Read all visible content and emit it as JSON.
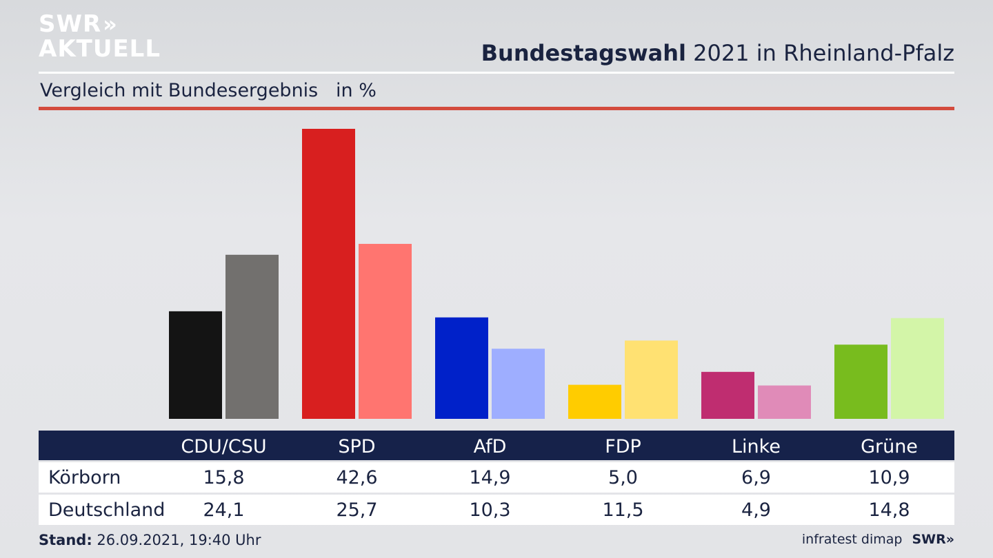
{
  "header": {
    "logo_line1": "SWR",
    "logo_chevrons": "»",
    "logo_line2": "AKTUELL",
    "title_bold": "Bundestagswahl",
    "title_rest": " 2021 in Rheinland-Pfalz",
    "subtitle": "Vergleich mit Bundesergebnis   in %"
  },
  "chart_data": {
    "type": "bar",
    "categories": [
      "CDU/CSU",
      "SPD",
      "AfD",
      "FDP",
      "Linke",
      "Grüne"
    ],
    "series": [
      {
        "name": "Körborn",
        "values": [
          15.8,
          42.6,
          14.9,
          5.0,
          6.9,
          10.9
        ]
      },
      {
        "name": "Deutschland",
        "values": [
          24.1,
          25.7,
          10.3,
          11.5,
          4.9,
          14.8
        ]
      }
    ],
    "value_labels": [
      [
        "15,8",
        "42,6",
        "14,9",
        "5,0",
        "6,9",
        "10,9"
      ],
      [
        "24,1",
        "25,7",
        "10,3",
        "11,5",
        "4,9",
        "14,8"
      ]
    ],
    "colors_primary": [
      "#141414",
      "#d81f1f",
      "#0021c9",
      "#ffcc00",
      "#bf2d70",
      "#78bc1e"
    ],
    "colors_secondary": [
      "#72706e",
      "#ff7570",
      "#9eaeff",
      "#ffe172",
      "#e08bb8",
      "#d3f5a8"
    ],
    "ylim": [
      0,
      42.6
    ],
    "grid": false,
    "legend": "table-below"
  },
  "footer": {
    "stand_label": "Stand:",
    "stand_value": " 26.09.2021, 19:40 Uhr",
    "source": "infratest dimap",
    "brand": "SWR»"
  }
}
